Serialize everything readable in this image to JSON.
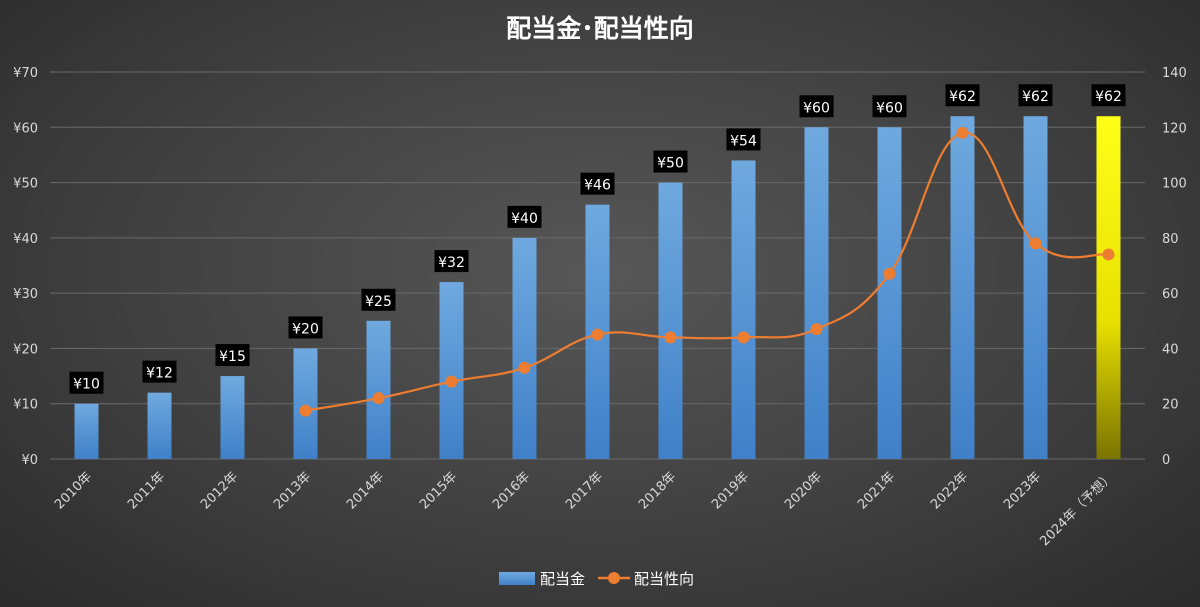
{
  "chart_data": {
    "type": "bar",
    "title": "配当金･配当性向",
    "categories": [
      "2010年",
      "2011年",
      "2012年",
      "2013年",
      "2014年",
      "2015年",
      "2016年",
      "2017年",
      "2018年",
      "2019年",
      "2020年",
      "2021年",
      "2022年",
      "2023年",
      "2024年（予想）"
    ],
    "series": [
      {
        "name": "配当金",
        "type": "bar",
        "axis": "left",
        "values": [
          10,
          12,
          15,
          20,
          25,
          32,
          40,
          46,
          50,
          54,
          60,
          60,
          62,
          62,
          62
        ],
        "labels": [
          "¥10",
          "¥12",
          "¥15",
          "¥20",
          "¥25",
          "¥32",
          "¥40",
          "¥46",
          "¥50",
          "¥54",
          "¥60",
          "¥60",
          "¥62",
          "¥62",
          "¥62"
        ],
        "color": "#5b9bd5",
        "highlight_last_color": "#ffff00"
      },
      {
        "name": "配当性向",
        "type": "line",
        "axis": "right",
        "values": [
          null,
          null,
          null,
          17.5,
          22,
          28,
          33,
          45,
          44,
          44,
          47,
          67,
          118,
          78,
          74
        ],
        "color": "#ed7d31"
      }
    ],
    "y_left": {
      "min": 0,
      "max": 70,
      "step": 10,
      "tick_labels": [
        "¥0",
        "¥10",
        "¥20",
        "¥30",
        "¥40",
        "¥50",
        "¥60",
        "¥70"
      ]
    },
    "y_right": {
      "min": 0,
      "max": 140,
      "step": 20,
      "tick_labels": [
        "0",
        "20",
        "40",
        "60",
        "80",
        "100",
        "120",
        "140"
      ]
    },
    "grid": true,
    "legend": "bottom"
  }
}
